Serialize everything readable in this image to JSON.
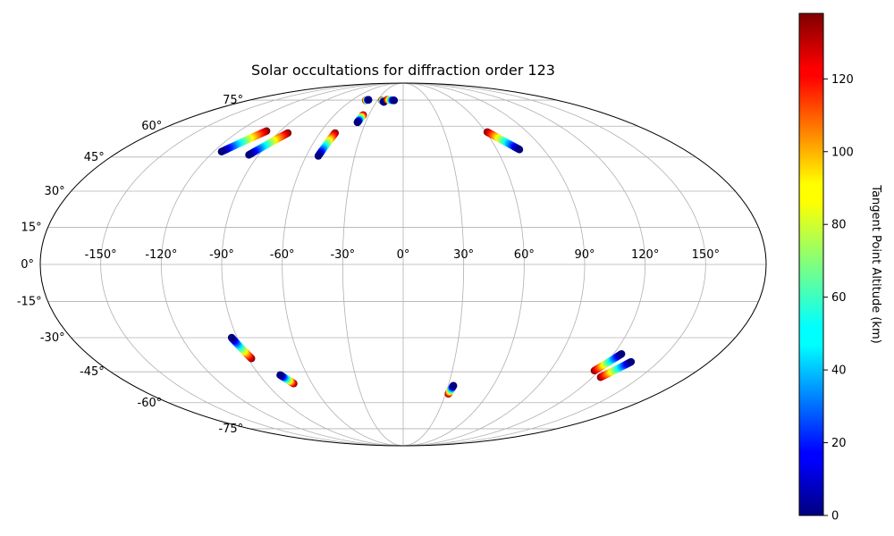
{
  "chart_data": {
    "type": "scatter",
    "projection": "mollweide",
    "title": "Solar occultations for diffraction order 123",
    "grid": true,
    "x_tick_labels": [
      "-150°",
      "-120°",
      "-90°",
      "-60°",
      "-30°",
      "0°",
      "30°",
      "60°",
      "90°",
      "120°",
      "150°"
    ],
    "x_tick_values": [
      -150,
      -120,
      -90,
      -60,
      -30,
      0,
      30,
      60,
      90,
      120,
      150
    ],
    "y_tick_labels": [
      "-75°",
      "-60°",
      "-45°",
      "-30°",
      "-15°",
      "0°",
      "15°",
      "30°",
      "45°",
      "60°",
      "75°"
    ],
    "y_tick_values": [
      -75,
      -60,
      -45,
      -30,
      -15,
      0,
      15,
      30,
      45,
      60,
      75
    ],
    "colorbar": {
      "label": "Tangent Point Altitude (km)",
      "range": [
        0,
        138
      ],
      "colormap": "jet",
      "tick_labels": [
        "0",
        "20",
        "40",
        "60",
        "80",
        "100",
        "120"
      ],
      "tick_values": [
        0,
        20,
        40,
        60,
        80,
        100,
        120
      ]
    },
    "tracks": [
      {
        "lon_start": -115,
        "lat_start": 47.5,
        "lon_end": -100,
        "lat_end": 57.5,
        "alt_start": 0,
        "alt_end": 138
      },
      {
        "lon_start": -96,
        "lat_start": 46,
        "lon_end": -83,
        "lat_end": 56.5,
        "alt_start": 0,
        "alt_end": 138
      },
      {
        "lon_start": -52.5,
        "lat_start": 45.5,
        "lon_end": -49,
        "lat_end": 56.5,
        "alt_start": 0,
        "alt_end": 138
      },
      {
        "lon_start": -36.5,
        "lat_start": 62,
        "lon_end": -35,
        "lat_end": 66,
        "alt_start": 0,
        "alt_end": 138
      },
      {
        "lon_start": -41,
        "lat_start": 75.2,
        "lon_end": -43.5,
        "lat_end": 74.8,
        "alt_start": 0,
        "alt_end": 138
      },
      {
        "lon_start": -21.5,
        "lat_start": 73.8,
        "lon_end": -25,
        "lat_end": 74.8,
        "alt_start": 0,
        "alt_end": 138
      },
      {
        "lon_start": -10.5,
        "lat_start": 74.8,
        "lon_end": -19,
        "lat_end": 75.2,
        "alt_start": 0,
        "alt_end": 138
      },
      {
        "lon_start": 74.5,
        "lat_start": 48.5,
        "lon_end": 61,
        "lat_end": 57,
        "alt_start": 0,
        "alt_end": 138
      },
      {
        "lon_start": -93,
        "lat_start": -30,
        "lon_end": -88,
        "lat_end": -39,
        "alt_start": 0,
        "alt_end": 138
      },
      {
        "lon_start": -77,
        "lat_start": -46.5,
        "lon_end": -72,
        "lat_end": -50.5,
        "alt_start": 0,
        "alt_end": 138
      },
      {
        "lon_start": 33.5,
        "lat_start": -51.5,
        "lon_end": 32,
        "lat_end": -55.5,
        "alt_start": 0,
        "alt_end": 138
      },
      {
        "lon_start": 124.5,
        "lat_start": -37,
        "lon_end": 117,
        "lat_end": -44.5,
        "alt_start": 0,
        "alt_end": 138
      },
      {
        "lon_start": 134,
        "lat_start": -40.5,
        "lon_end": 125,
        "lat_end": -47.5,
        "alt_start": 0,
        "alt_end": 138
      }
    ]
  }
}
